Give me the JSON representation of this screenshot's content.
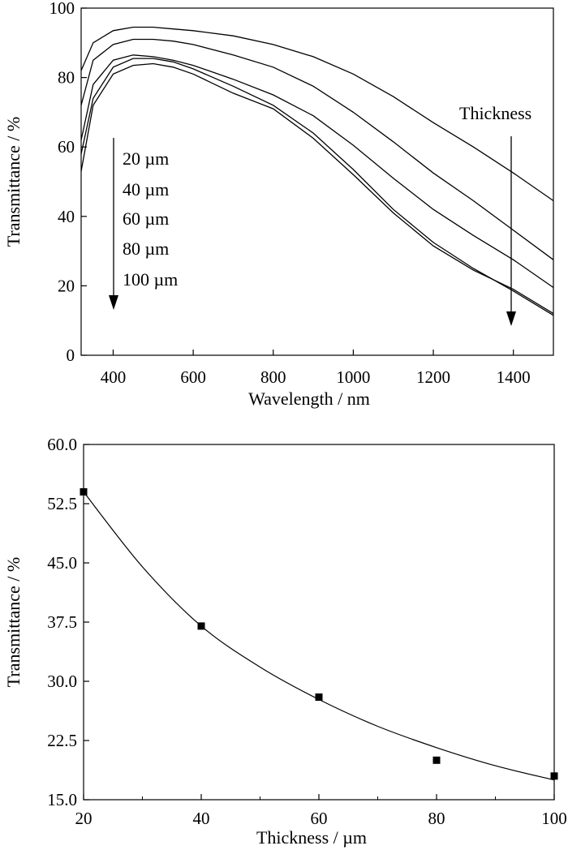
{
  "chart_data": [
    {
      "type": "line",
      "xlabel": "Wavelength / nm",
      "ylabel": "Transmittance / %",
      "xlim": [
        320,
        1500
      ],
      "ylim": [
        0,
        100
      ],
      "xticks": [
        400,
        600,
        800,
        1000,
        1200,
        1400
      ],
      "yticks": [
        0,
        20,
        40,
        60,
        80,
        100
      ],
      "grid": false,
      "annotations": {
        "thickness_label": "Thickness",
        "series_labels": [
          "20 µm",
          "40 µm",
          "60 µm",
          "80 µm",
          "100 µm"
        ]
      },
      "series": [
        {
          "name": "20 µm",
          "x": [
            320,
            350,
            400,
            450,
            500,
            550,
            600,
            700,
            800,
            900,
            1000,
            1100,
            1200,
            1300,
            1400,
            1500
          ],
          "y": [
            82,
            90,
            93.5,
            94.5,
            94.5,
            94,
            93.5,
            92,
            89.5,
            86,
            81,
            74.5,
            67,
            60,
            52.5,
            44.5
          ]
        },
        {
          "name": "40 µm",
          "x": [
            320,
            350,
            400,
            450,
            500,
            550,
            600,
            700,
            800,
            900,
            1000,
            1100,
            1200,
            1300,
            1400,
            1500
          ],
          "y": [
            72,
            85,
            89.5,
            91,
            91,
            90.5,
            89.5,
            86.5,
            83,
            77.5,
            70,
            61.5,
            52.5,
            44.5,
            36,
            27.5
          ]
        },
        {
          "name": "60 µm",
          "x": [
            320,
            350,
            400,
            450,
            500,
            550,
            600,
            700,
            800,
            900,
            1000,
            1100,
            1200,
            1300,
            1400,
            1500
          ],
          "y": [
            62,
            78,
            85,
            86.5,
            86,
            85,
            83.5,
            79.5,
            75,
            69,
            60.5,
            51,
            42,
            34.5,
            27.5,
            19.5
          ]
        },
        {
          "name": "80 µm",
          "x": [
            320,
            350,
            400,
            450,
            500,
            550,
            600,
            700,
            800,
            900,
            1000,
            1100,
            1200,
            1300,
            1400,
            1500
          ],
          "y": [
            58,
            74,
            83,
            85.5,
            85.5,
            84.5,
            82.5,
            77.5,
            72,
            64,
            53.5,
            42,
            32.5,
            25,
            18.5,
            11.5
          ]
        },
        {
          "name": "100 µm",
          "x": [
            320,
            350,
            400,
            450,
            500,
            550,
            600,
            700,
            800,
            900,
            1000,
            1100,
            1200,
            1300,
            1400,
            1500
          ],
          "y": [
            53,
            72,
            81,
            83.5,
            84,
            83,
            81,
            75.5,
            71,
            62.5,
            52,
            41,
            31.5,
            24.5,
            19,
            12
          ]
        }
      ]
    },
    {
      "type": "scatter",
      "xlabel": "Thickness / µm",
      "ylabel": "Transmittance / %",
      "xlim": [
        20,
        100
      ],
      "ylim": [
        15.0,
        60.0
      ],
      "xticks": [
        20,
        40,
        60,
        80,
        100
      ],
      "yticks": [
        "15.0",
        "22.5",
        "30.0",
        "37.5",
        "45.0",
        "52.5",
        "60.0"
      ],
      "grid": false,
      "series": [
        {
          "name": "",
          "x": [
            20,
            40,
            60,
            80,
            100
          ],
          "y": [
            54.0,
            37.0,
            28.0,
            20.0,
            18.0
          ]
        }
      ],
      "fit": {
        "x": [
          20,
          30,
          40,
          50,
          60,
          70,
          80,
          90,
          100
        ],
        "y": [
          54.0,
          44.5,
          37.0,
          31.8,
          27.7,
          24.3,
          21.6,
          19.3,
          17.5
        ]
      }
    }
  ]
}
